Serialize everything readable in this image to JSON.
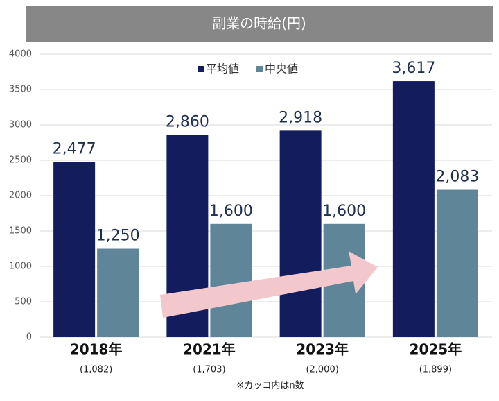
{
  "chart_data": {
    "type": "bar",
    "title": "副業の時給(円)",
    "categories": [
      "2018年",
      "2021年",
      "2023年",
      "2025年"
    ],
    "category_notes": [
      "(1,082)",
      "(1,703)",
      "(2,000)",
      "(1,899)"
    ],
    "footnote": "※カッコ内はn数",
    "series": [
      {
        "name": "平均値",
        "color": "#131d5e",
        "values": [
          2477,
          2860,
          2918,
          3617
        ],
        "value_labels": [
          "2,477",
          "2,860",
          "2,918",
          "3,617"
        ]
      },
      {
        "name": "中央値",
        "color": "#5f8598",
        "values": [
          1250,
          1600,
          1600,
          2083
        ],
        "value_labels": [
          "1,250",
          "1,600",
          "1,600",
          "2,083"
        ]
      }
    ],
    "ylim": [
      0,
      4000
    ],
    "yticks": [
      0,
      500,
      1000,
      1500,
      2000,
      2500,
      3000,
      3500,
      4000
    ],
    "grid": true,
    "legend": "top"
  }
}
